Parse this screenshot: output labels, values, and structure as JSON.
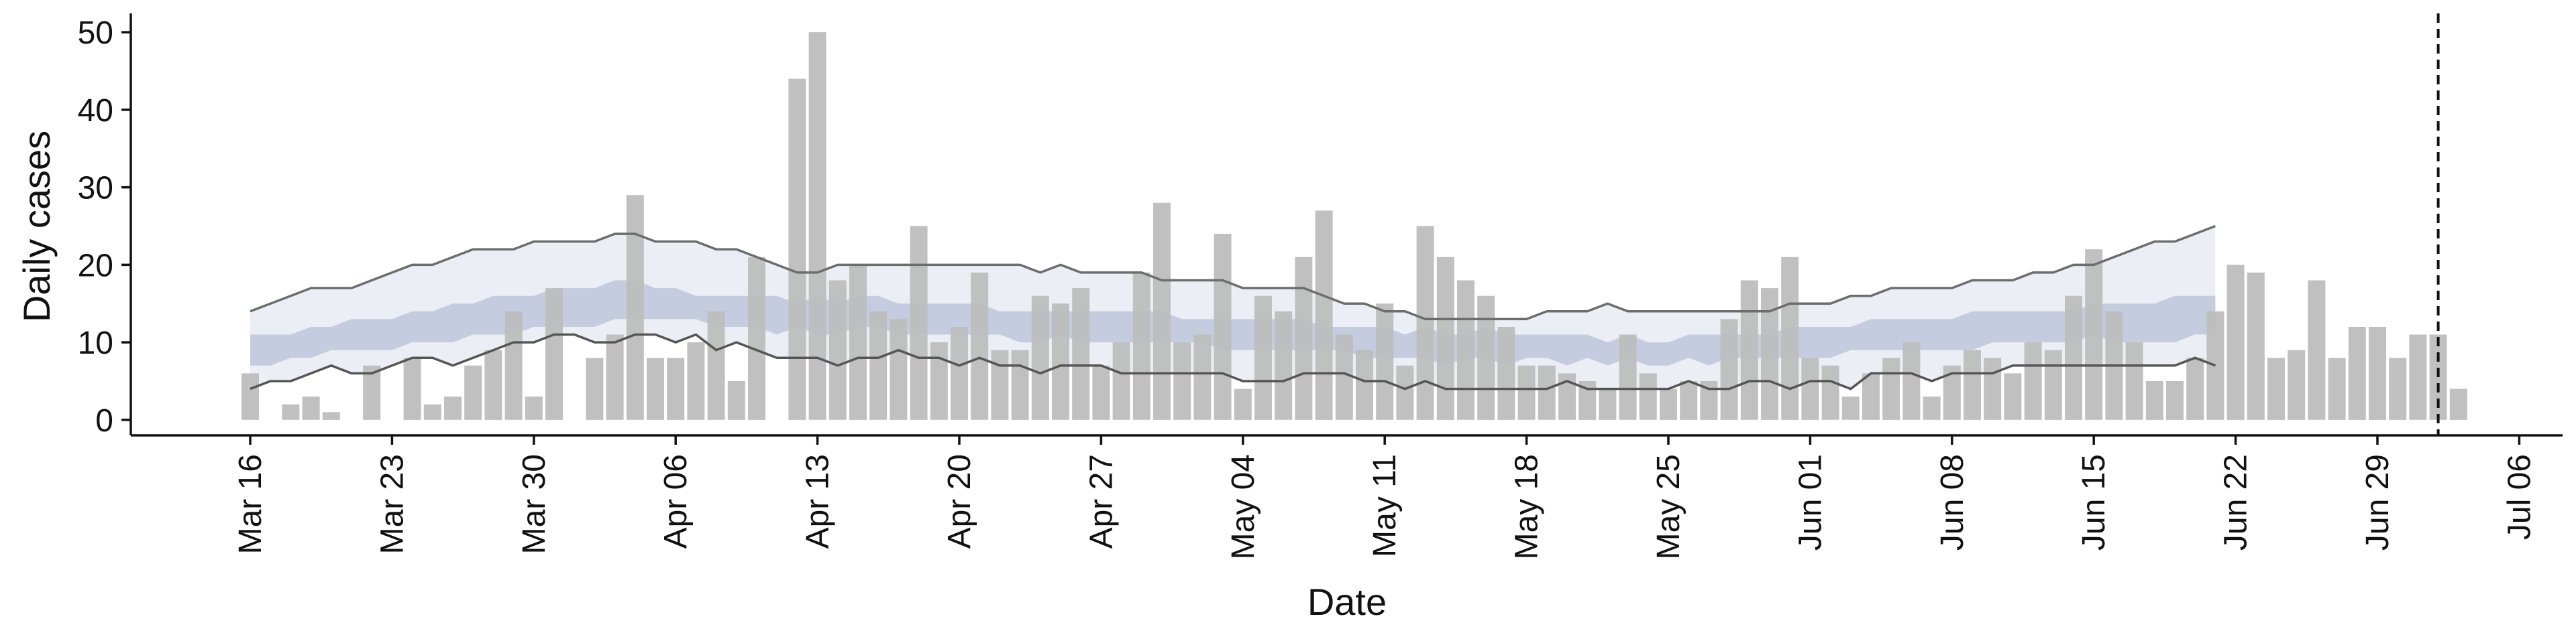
{
  "chart_data": {
    "type": "bar",
    "xlabel": "Date",
    "ylabel": "Daily cases",
    "ylim": [
      -2,
      52
    ],
    "xlim": [
      "2020-03-16",
      "2020-07-06"
    ],
    "yticks": [
      0,
      10,
      20,
      30,
      40,
      50
    ],
    "xticks": [
      {
        "date": "2020-03-16",
        "label": "Mar 16"
      },
      {
        "date": "2020-03-23",
        "label": "Mar 23"
      },
      {
        "date": "2020-03-30",
        "label": "Mar 30"
      },
      {
        "date": "2020-04-06",
        "label": "Apr 06"
      },
      {
        "date": "2020-04-13",
        "label": "Apr 13"
      },
      {
        "date": "2020-04-20",
        "label": "Apr 20"
      },
      {
        "date": "2020-04-27",
        "label": "Apr 27"
      },
      {
        "date": "2020-05-04",
        "label": "May 04"
      },
      {
        "date": "2020-05-11",
        "label": "May 11"
      },
      {
        "date": "2020-05-18",
        "label": "May 18"
      },
      {
        "date": "2020-05-25",
        "label": "May 25"
      },
      {
        "date": "2020-06-01",
        "label": "Jun 01"
      },
      {
        "date": "2020-06-08",
        "label": "Jun 08"
      },
      {
        "date": "2020-06-15",
        "label": "Jun 15"
      },
      {
        "date": "2020-06-22",
        "label": "Jun 22"
      },
      {
        "date": "2020-06-29",
        "label": "Jun 29"
      },
      {
        "date": "2020-07-06",
        "label": "Jul 06"
      }
    ],
    "bars": {
      "start_date": "2020-03-16",
      "values": [
        6,
        0,
        2,
        3,
        1,
        0,
        7,
        0,
        8,
        2,
        3,
        7,
        9,
        14,
        3,
        17,
        0,
        8,
        11,
        29,
        8,
        8,
        10,
        14,
        5,
        21,
        0,
        44,
        50,
        18,
        20,
        14,
        13,
        25,
        10,
        12,
        19,
        9,
        9,
        16,
        15,
        17,
        7,
        10,
        19,
        28,
        10,
        11,
        24,
        4,
        16,
        14,
        21,
        27,
        11,
        9,
        15,
        7,
        25,
        21,
        18,
        16,
        12,
        7,
        7,
        6,
        5,
        4,
        11,
        6,
        4,
        5,
        5,
        13,
        18,
        17,
        21,
        8,
        7,
        3,
        6,
        8,
        10,
        3,
        7,
        9,
        8,
        6,
        10,
        9,
        16,
        22,
        14,
        10,
        5,
        5,
        8,
        14,
        20,
        19,
        8,
        9,
        18,
        8,
        12,
        12,
        8,
        11,
        11,
        4
      ],
      "color": "#bdbdbd"
    },
    "reference_line": {
      "date": "2020-07-02",
      "style": "dashed",
      "color": "#111111"
    },
    "series": [
      {
        "start_date": "2020-03-16",
        "upper90": [
          14,
          15,
          16,
          17,
          17,
          17,
          18,
          19,
          20,
          20,
          21,
          22,
          22,
          22,
          23,
          23,
          23,
          23,
          24,
          24,
          23,
          23,
          23,
          22,
          22,
          21,
          20,
          19,
          19,
          20,
          20,
          20,
          20,
          20,
          20,
          20,
          20,
          20,
          20,
          19,
          20,
          19,
          19,
          19,
          19,
          18,
          18,
          18,
          18,
          17,
          17,
          17,
          17,
          16,
          15,
          15,
          14,
          14,
          13,
          13,
          13,
          13,
          13,
          13,
          14,
          14,
          14,
          15,
          14,
          14,
          14,
          14,
          14,
          14,
          14,
          14,
          15,
          15,
          15,
          16,
          16,
          17,
          17,
          17,
          17,
          18,
          18,
          18,
          19,
          19,
          20,
          20,
          21,
          22,
          23,
          23,
          24,
          25
        ],
        "lower90": [
          4,
          5,
          5,
          6,
          7,
          6,
          6,
          7,
          8,
          8,
          7,
          8,
          9,
          10,
          10,
          11,
          11,
          10,
          10,
          11,
          11,
          10,
          11,
          9,
          10,
          9,
          8,
          8,
          8,
          7,
          8,
          8,
          9,
          8,
          8,
          7,
          8,
          7,
          7,
          6,
          7,
          7,
          7,
          6,
          6,
          6,
          6,
          6,
          6,
          5,
          5,
          5,
          6,
          6,
          6,
          5,
          5,
          4,
          5,
          4,
          4,
          4,
          4,
          4,
          4,
          5,
          4,
          4,
          4,
          4,
          4,
          5,
          4,
          4,
          5,
          5,
          4,
          5,
          5,
          4,
          6,
          6,
          6,
          5,
          6,
          6,
          6,
          7,
          7,
          7,
          7,
          7,
          7,
          7,
          7,
          7,
          8,
          7
        ],
        "upper50": [
          11,
          11,
          11,
          12,
          12,
          13,
          13,
          13,
          14,
          14,
          15,
          15,
          16,
          16,
          16,
          17,
          17,
          17,
          18,
          18,
          17,
          17,
          16,
          16,
          16,
          16,
          16,
          15,
          16,
          15,
          16,
          16,
          15,
          15,
          15,
          15,
          15,
          14,
          14,
          14,
          14,
          14,
          14,
          14,
          14,
          14,
          13,
          13,
          13,
          13,
          13,
          13,
          13,
          12,
          12,
          12,
          12,
          11,
          12,
          11,
          11,
          12,
          11,
          11,
          11,
          11,
          11,
          10,
          11,
          10,
          10,
          11,
          11,
          11,
          11,
          11,
          12,
          12,
          12,
          12,
          13,
          13,
          13,
          13,
          13,
          14,
          14,
          14,
          14,
          14,
          14,
          15,
          15,
          15,
          15,
          16,
          16,
          16
        ],
        "lower50": [
          7,
          7,
          8,
          8,
          9,
          9,
          9,
          9,
          10,
          10,
          10,
          11,
          11,
          11,
          12,
          12,
          12,
          12,
          13,
          13,
          13,
          13,
          13,
          12,
          12,
          12,
          11,
          12,
          11,
          11,
          12,
          12,
          11,
          11,
          11,
          11,
          11,
          11,
          10,
          10,
          11,
          10,
          10,
          10,
          10,
          10,
          10,
          10,
          9,
          9,
          9,
          9,
          9,
          9,
          9,
          8,
          8,
          8,
          8,
          7,
          8,
          8,
          7,
          8,
          8,
          7,
          8,
          7,
          8,
          7,
          7,
          8,
          7,
          8,
          8,
          8,
          8,
          8,
          8,
          9,
          9,
          9,
          9,
          9,
          9,
          9,
          10,
          10,
          10,
          10,
          10,
          11,
          10,
          10,
          10,
          10,
          11,
          11
        ],
        "outer_color": "#eceef5",
        "inner_color": "#bfc5da",
        "line_color": "#6d6d6d"
      }
    ]
  }
}
